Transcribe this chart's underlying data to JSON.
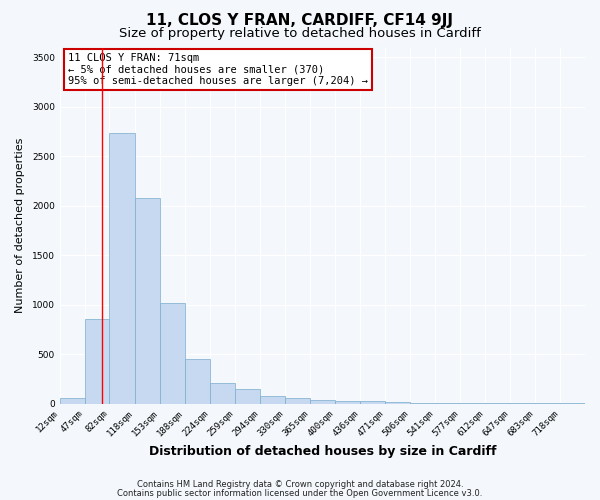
{
  "title1": "11, CLOS Y FRAN, CARDIFF, CF14 9JJ",
  "title2": "Size of property relative to detached houses in Cardiff",
  "xlabel": "Distribution of detached houses by size in Cardiff",
  "ylabel": "Number of detached properties",
  "bar_labels": [
    "12sqm",
    "47sqm",
    "82sqm",
    "118sqm",
    "153sqm",
    "188sqm",
    "224sqm",
    "259sqm",
    "294sqm",
    "330sqm",
    "365sqm",
    "400sqm",
    "436sqm",
    "471sqm",
    "506sqm",
    "541sqm",
    "577sqm",
    "612sqm",
    "647sqm",
    "683sqm",
    "718sqm"
  ],
  "bar_values": [
    55,
    850,
    2740,
    2075,
    1020,
    450,
    210,
    150,
    75,
    55,
    32,
    25,
    22,
    20,
    2,
    1,
    1,
    1,
    1,
    1,
    1
  ],
  "bar_color": "#c6d9f0",
  "bar_edge_color": "#7aadce",
  "red_line_x": 71,
  "bin_edges": [
    12,
    47,
    82,
    118,
    153,
    188,
    224,
    259,
    294,
    330,
    365,
    400,
    436,
    471,
    506,
    541,
    577,
    612,
    647,
    683,
    718,
    753
  ],
  "ylim": [
    0,
    3600
  ],
  "yticks": [
    0,
    500,
    1000,
    1500,
    2000,
    2500,
    3000,
    3500
  ],
  "annotation_title": "11 CLOS Y FRAN: 71sqm",
  "annotation_line1": "← 5% of detached houses are smaller (370)",
  "annotation_line2": "95% of semi-detached houses are larger (7,204) →",
  "annotation_box_color": "#ffffff",
  "annotation_box_edge_color": "#cc0000",
  "footnote1": "Contains HM Land Registry data © Crown copyright and database right 2024.",
  "footnote2": "Contains public sector information licensed under the Open Government Licence v3.0.",
  "background_color": "#f4f8fc",
  "plot_bg_color": "#f4f8fc",
  "grid_color": "#ffffff",
  "title1_fontsize": 11,
  "title2_fontsize": 9.5,
  "xlabel_fontsize": 9,
  "ylabel_fontsize": 8,
  "tick_fontsize": 6.5,
  "annotation_fontsize": 7.5,
  "footnote_fontsize": 6
}
